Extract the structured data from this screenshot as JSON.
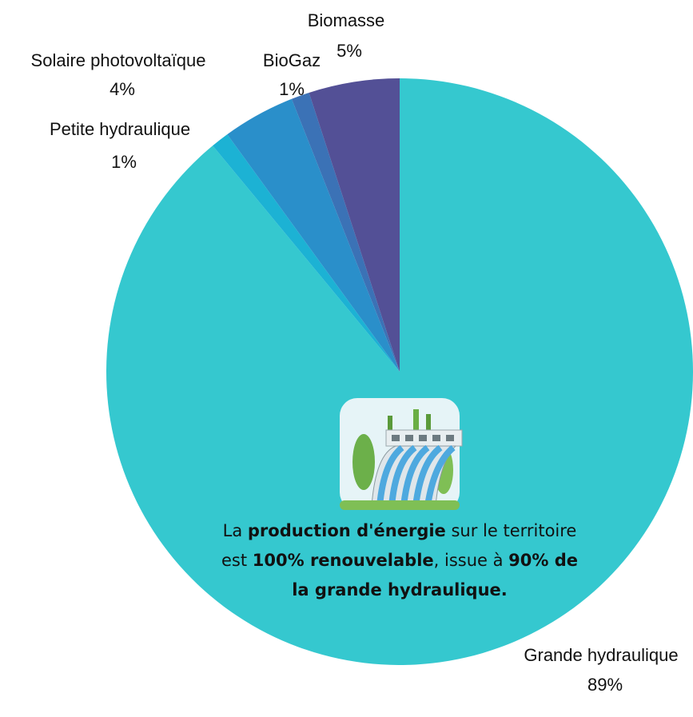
{
  "chart_data": {
    "type": "pie",
    "categories": [
      "Grande hydraulique",
      "Petite hydraulique",
      "Solaire photovoltaïque",
      "BioGaz",
      "Biomasse"
    ],
    "values": [
      89,
      1,
      4,
      1,
      5
    ],
    "value_labels": [
      "89%",
      "1%",
      "4%",
      "1%",
      "5%"
    ],
    "colors": [
      "#35c8cf",
      "#1cb2d4",
      "#2a8fca",
      "#3b72b6",
      "#535096"
    ],
    "annotation": [
      {
        "text": "La ",
        "bold": false
      },
      {
        "text": "production d'énergie",
        "bold": true
      },
      {
        "text": " sur le territoire est ",
        "bold": false
      },
      {
        "text": "100% renouvelable",
        "bold": true
      },
      {
        "text": ", issue à ",
        "bold": false
      },
      {
        "text": "90% de la grande hydraulique.",
        "bold": true
      }
    ]
  }
}
